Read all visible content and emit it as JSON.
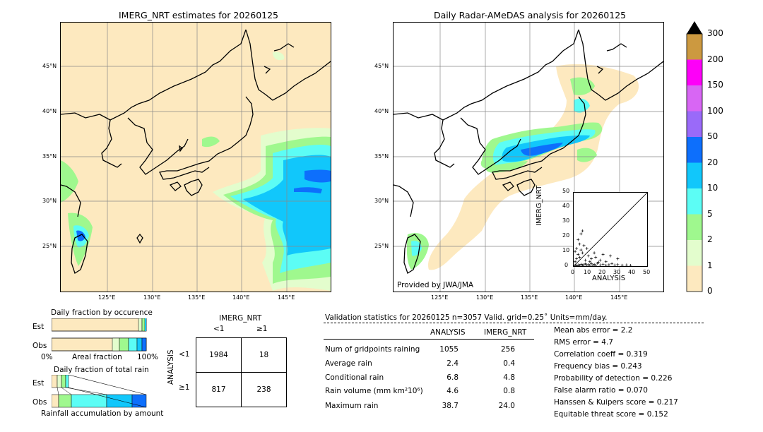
{
  "left_map": {
    "title": "IMERG_NRT estimates for 20260125",
    "lat_labels": [
      "45°N",
      "40°N",
      "35°N",
      "30°N",
      "25°N"
    ],
    "lon_labels": [
      "125°E",
      "130°E",
      "135°E",
      "140°E",
      "145°E"
    ]
  },
  "right_map": {
    "title": "Daily Radar-AMeDAS analysis for 20260125",
    "lat_labels": [
      "45°N",
      "40°N",
      "35°N",
      "30°N",
      "25°N"
    ],
    "lon_labels": [
      "125°E",
      "130°E",
      "135°E",
      "140°E",
      "145°E"
    ],
    "provider": "Provided by JWA/JMA"
  },
  "colorbar": {
    "levels": [
      "0",
      "1",
      "2",
      "5",
      "10",
      "20",
      "50",
      "100",
      "150",
      "200",
      "300"
    ],
    "colors": [
      "#fde9bf",
      "#e3fdcd",
      "#9ff88e",
      "#5cfdf5",
      "#11c7fb",
      "#0d6ffc",
      "#9a6af9",
      "#d866f4",
      "#fd00f8",
      "#cc9940"
    ]
  },
  "scatter": {
    "ylabel": "IMERG_NRT",
    "xlabel": "ANALYSIS",
    "ticks": [
      "0",
      "10",
      "20",
      "30",
      "40",
      "50"
    ]
  },
  "fraction_occurrence": {
    "title": "Daily fraction by occurence",
    "rows": [
      "Est",
      "Obs"
    ],
    "axis_left": "0%",
    "axis_mid": "Areal fraction",
    "axis_right": "100%"
  },
  "fraction_rain": {
    "title": "Daily fraction of total rain",
    "rows": [
      "Est",
      "Obs"
    ],
    "axis_label": "Rainfall accumulation by amount"
  },
  "contingency": {
    "header": "IMERG_NRT",
    "col_labels": [
      "<1",
      "≥1"
    ],
    "row_axis": "ANALYSIS",
    "row_labels": [
      "<1",
      "≥1"
    ],
    "cells": [
      [
        "1984",
        "18"
      ],
      [
        "817",
        "238"
      ]
    ]
  },
  "validation": {
    "heading": "Validation statistics for 20260125  n=3057 Valid. grid=0.25˚ Units=mm/day.",
    "col_analysis": "ANALYSIS",
    "col_imerg": "IMERG_NRT",
    "rows": [
      {
        "label": "Num of gridpoints raining",
        "analysis": "1055",
        "imerg": "256"
      },
      {
        "label": "Average rain",
        "analysis": "2.4",
        "imerg": "0.4"
      },
      {
        "label": "Conditional rain",
        "analysis": "6.8",
        "imerg": "4.8"
      },
      {
        "label": "Rain volume (mm km²10⁶)",
        "analysis": "4.6",
        "imerg": "0.8"
      },
      {
        "label": "Maximum rain",
        "analysis": "38.7",
        "imerg": "24.0"
      }
    ],
    "scores": [
      "Mean abs error =    2.2",
      "RMS error =    4.7",
      "Correlation coeff =  0.319",
      "Frequency bias =  0.243",
      "Probability of detection =  0.226",
      "False alarm ratio =  0.070",
      "Hanssen & Kuipers score =  0.217",
      "Equitable threat score =  0.152"
    ]
  },
  "chart_data": {
    "type": "scatter",
    "xlabel": "ANALYSIS",
    "ylabel": "IMERG_NRT",
    "xlim": [
      0,
      50
    ],
    "ylim": [
      0,
      50
    ],
    "points": [
      [
        1,
        0.5
      ],
      [
        2,
        0.3
      ],
      [
        3,
        0.8
      ],
      [
        4,
        0.4
      ],
      [
        5,
        1.2
      ],
      [
        6,
        0.6
      ],
      [
        7,
        0.9
      ],
      [
        8,
        1.5
      ],
      [
        9,
        0.7
      ],
      [
        10,
        1.0
      ],
      [
        11,
        0.5
      ],
      [
        12,
        1.8
      ],
      [
        13,
        0.6
      ],
      [
        14,
        1.1
      ],
      [
        15,
        0.4
      ],
      [
        16,
        2.0
      ],
      [
        18,
        0.8
      ],
      [
        20,
        1.3
      ],
      [
        22,
        0.5
      ],
      [
        24,
        0.9
      ],
      [
        26,
        1.6
      ],
      [
        28,
        0.7
      ],
      [
        30,
        1.0
      ],
      [
        33,
        0.6
      ],
      [
        36,
        0.8
      ],
      [
        38.7,
        0.5
      ],
      [
        1,
        3
      ],
      [
        2,
        5
      ],
      [
        3,
        8
      ],
      [
        2,
        12
      ],
      [
        4,
        15
      ],
      [
        3,
        18
      ],
      [
        5,
        22
      ],
      [
        6,
        24
      ],
      [
        1,
        10
      ],
      [
        4,
        6
      ],
      [
        6,
        9
      ],
      [
        8,
        4
      ],
      [
        10,
        7
      ],
      [
        12,
        5
      ],
      [
        15,
        6
      ],
      [
        18,
        4
      ],
      [
        20,
        8
      ],
      [
        25,
        7
      ],
      [
        22,
        3
      ],
      [
        30,
        5
      ],
      [
        7,
        14
      ],
      [
        5,
        11
      ],
      [
        9,
        12
      ],
      [
        11,
        3
      ],
      [
        14,
        9
      ],
      [
        17,
        2.5
      ]
    ]
  }
}
